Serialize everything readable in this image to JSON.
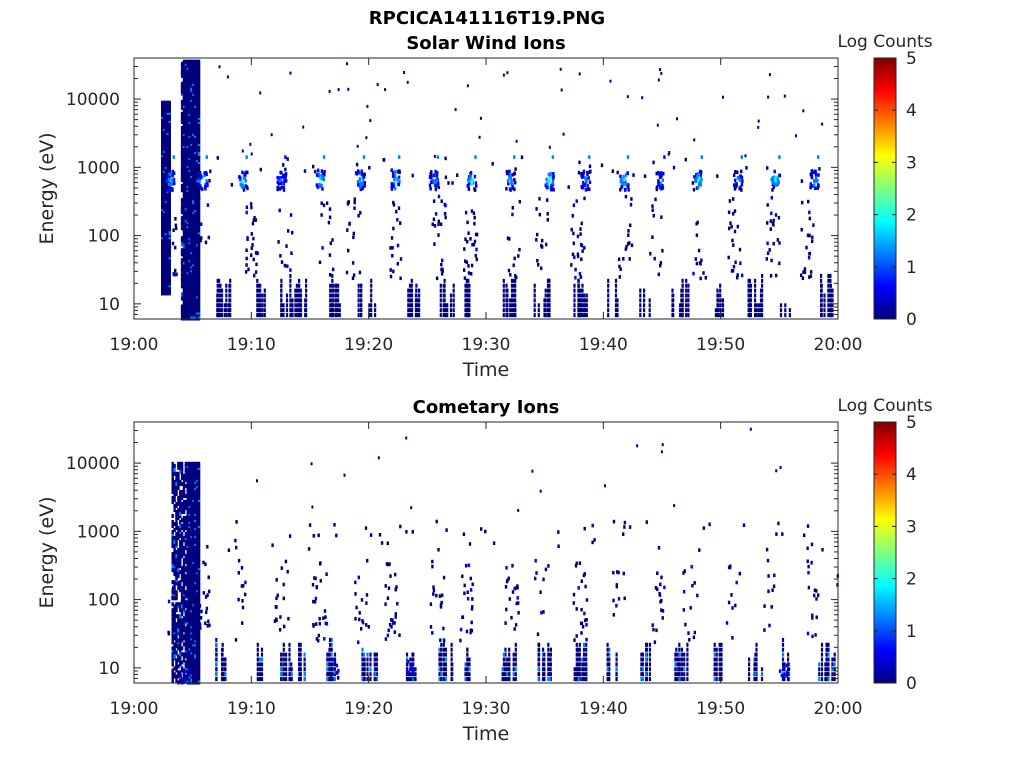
{
  "figure": {
    "suptitle": "RPCICA141116T19.PNG"
  },
  "colorscale": [
    "#00007f",
    "#0000ff",
    "#007fff",
    "#00ffff",
    "#7fff7f",
    "#ffff00",
    "#ff7f00",
    "#ff0000",
    "#7f0000"
  ],
  "chart_data": [
    {
      "type": "heatmap",
      "title": "Solar Wind Ions",
      "xlabel": "Time",
      "ylabel": "Energy (eV)",
      "x_ticks": [
        "19:00",
        "19:10",
        "19:20",
        "19:30",
        "19:40",
        "19:50",
        "20:00"
      ],
      "x_range_minutes": [
        0,
        60
      ],
      "y_scale": "log",
      "y_ticks": [
        "10",
        "100",
        "1000",
        "10000"
      ],
      "y_tick_values": [
        10,
        100,
        1000,
        10000
      ],
      "y_range_eV": [
        6,
        40000
      ],
      "colorbar": {
        "label": "Log Counts",
        "ticks": [
          "0",
          "1",
          "2",
          "3",
          "4",
          "5"
        ],
        "range": [
          0,
          5
        ],
        "colormap": "jet"
      },
      "features": [
        {
          "desc": "broadband burst",
          "t_start": 4.0,
          "t_end": 5.5,
          "e_min": 6,
          "e_max": 40000,
          "log_counts": 0.1
        },
        {
          "desc": "early sparse column",
          "t_start": 2.3,
          "t_end": 3.1,
          "e_min": 15,
          "e_max": 10000,
          "log_counts": 0.1
        },
        {
          "desc": "solar wind peak",
          "t_min": 3.0,
          "energy_eV": 680,
          "log_counts": 1.8
        },
        {
          "desc": "solar wind peak",
          "t_min": 5.8,
          "energy_eV": 680,
          "log_counts": 1.9
        },
        {
          "desc": "solar wind peak",
          "t_min": 9.2,
          "energy_eV": 680,
          "log_counts": 2.0
        },
        {
          "desc": "solar wind peak",
          "t_min": 12.5,
          "energy_eV": 680,
          "log_counts": 1.2
        },
        {
          "desc": "solar wind peak",
          "t_min": 15.8,
          "energy_eV": 700,
          "log_counts": 2.0
        },
        {
          "desc": "solar wind peak",
          "t_min": 19.2,
          "energy_eV": 680,
          "log_counts": 1.8
        },
        {
          "desc": "solar wind peak",
          "t_min": 22.2,
          "energy_eV": 680,
          "log_counts": 2.0
        },
        {
          "desc": "solar wind peak",
          "t_min": 25.5,
          "energy_eV": 680,
          "log_counts": 1.5
        },
        {
          "desc": "solar wind peak",
          "t_min": 28.7,
          "energy_eV": 680,
          "log_counts": 2.0
        },
        {
          "desc": "solar wind peak",
          "t_min": 32.0,
          "energy_eV": 680,
          "log_counts": 1.5
        },
        {
          "desc": "solar wind peak",
          "t_min": 35.3,
          "energy_eV": 680,
          "log_counts": 2.1
        },
        {
          "desc": "solar wind peak",
          "t_min": 38.4,
          "energy_eV": 680,
          "log_counts": 1.5
        },
        {
          "desc": "solar wind peak",
          "t_min": 41.7,
          "energy_eV": 680,
          "log_counts": 2.1
        },
        {
          "desc": "solar wind peak",
          "t_min": 44.8,
          "energy_eV": 680,
          "log_counts": 1.3
        },
        {
          "desc": "solar wind peak",
          "t_min": 48.0,
          "energy_eV": 680,
          "log_counts": 2.0
        },
        {
          "desc": "solar wind peak",
          "t_min": 51.4,
          "energy_eV": 680,
          "log_counts": 1.5
        },
        {
          "desc": "solar wind peak",
          "t_min": 54.6,
          "energy_eV": 680,
          "log_counts": 2.1
        },
        {
          "desc": "solar wind peak",
          "t_min": 57.9,
          "energy_eV": 680,
          "log_counts": 1.5
        }
      ]
    },
    {
      "type": "heatmap",
      "title": "Cometary Ions",
      "xlabel": "Time",
      "ylabel": "Energy (eV)",
      "x_ticks": [
        "19:00",
        "19:10",
        "19:20",
        "19:30",
        "19:40",
        "19:50",
        "20:00"
      ],
      "x_range_minutes": [
        0,
        60
      ],
      "y_scale": "log",
      "y_ticks": [
        "10",
        "100",
        "1000",
        "10000"
      ],
      "y_tick_values": [
        10,
        100,
        1000,
        10000
      ],
      "y_range_eV": [
        6,
        40000
      ],
      "colorbar": {
        "label": "Log Counts",
        "ticks": [
          "0",
          "1",
          "2",
          "3",
          "4",
          "5"
        ],
        "range": [
          0,
          5
        ],
        "colormap": "jet"
      },
      "features": [
        {
          "desc": "burst",
          "t_start": 3.2,
          "t_end": 5.6,
          "e_min": 6,
          "e_max": 11000,
          "log_counts": 0.2
        },
        {
          "desc": "low-energy enhancement",
          "t_min": 4.2,
          "energy_eV": 8,
          "log_counts": 1.2
        },
        {
          "desc": "low-energy enhancement",
          "t_min": 17.0,
          "energy_eV": 10,
          "log_counts": 1.2
        },
        {
          "desc": "low-energy enhancement",
          "t_min": 23.5,
          "energy_eV": 10,
          "log_counts": 1.0
        },
        {
          "desc": "low-energy enhancement",
          "t_min": 55.3,
          "energy_eV": 10,
          "log_counts": 1.1
        }
      ]
    }
  ]
}
